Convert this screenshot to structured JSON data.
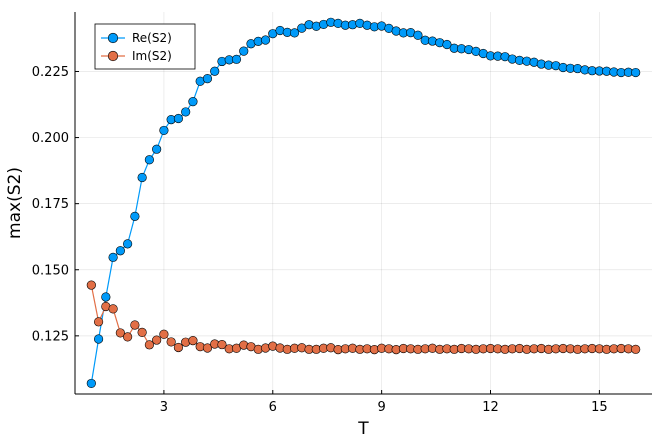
{
  "chart_data": {
    "type": "scatter",
    "title": "",
    "xlabel": "T",
    "ylabel": "max(S2)",
    "xlim": [
      0.55,
      16.45
    ],
    "ylim": [
      0.103,
      0.2475
    ],
    "xticks": [
      3,
      6,
      9,
      12,
      15
    ],
    "xtick_labels": [
      "3",
      "6",
      "9",
      "12",
      "15"
    ],
    "yticks": [
      0.125,
      0.15,
      0.175,
      0.2,
      0.225
    ],
    "ytick_labels": [
      "0.125",
      "0.150",
      "0.175",
      "0.200",
      "0.225"
    ],
    "grid": true,
    "legend_position": "top-left",
    "x": [
      1.0,
      1.2,
      1.4,
      1.6,
      1.8,
      2.0,
      2.2,
      2.4,
      2.6,
      2.8,
      3.0,
      3.2,
      3.4,
      3.6,
      3.8,
      4.0,
      4.2,
      4.4,
      4.6,
      4.8,
      5.0,
      5.2,
      5.4,
      5.6,
      5.8,
      6.0,
      6.2,
      6.4,
      6.6,
      6.8,
      7.0,
      7.2,
      7.4,
      7.6,
      7.8,
      8.0,
      8.2,
      8.4,
      8.6,
      8.8,
      9.0,
      9.2,
      9.4,
      9.6,
      9.8,
      10.0,
      10.2,
      10.4,
      10.6,
      10.8,
      11.0,
      11.2,
      11.4,
      11.6,
      11.8,
      12.0,
      12.2,
      12.4,
      12.6,
      12.8,
      13.0,
      13.2,
      13.4,
      13.6,
      13.8,
      14.0,
      14.2,
      14.4,
      14.6,
      14.8,
      15.0,
      15.2,
      15.4,
      15.6,
      15.8,
      16.0
    ],
    "series": [
      {
        "name": "Re(S2)",
        "color": "#009af9",
        "values": [
          0.107,
          0.1238,
          0.1397,
          0.1547,
          0.1572,
          0.1598,
          0.1702,
          0.1849,
          0.1916,
          0.1956,
          0.2027,
          0.2068,
          0.2072,
          0.2097,
          0.2136,
          0.2213,
          0.2223,
          0.2251,
          0.2288,
          0.2294,
          0.2296,
          0.2327,
          0.2355,
          0.2364,
          0.2369,
          0.2393,
          0.2405,
          0.2398,
          0.2396,
          0.2414,
          0.2427,
          0.2421,
          0.2428,
          0.2436,
          0.2432,
          0.2425,
          0.2427,
          0.2432,
          0.2425,
          0.2419,
          0.2422,
          0.2413,
          0.2403,
          0.2396,
          0.2397,
          0.2387,
          0.2368,
          0.2365,
          0.2359,
          0.2352,
          0.2338,
          0.2336,
          0.2333,
          0.2326,
          0.2318,
          0.2309,
          0.2308,
          0.2306,
          0.2297,
          0.2292,
          0.2289,
          0.2285,
          0.2278,
          0.2274,
          0.2272,
          0.2265,
          0.2262,
          0.2261,
          0.2256,
          0.2253,
          0.2252,
          0.2251,
          0.2248,
          0.2246,
          0.2247,
          0.2246
        ]
      },
      {
        "name": "Im(S2)",
        "color": "#e26f46",
        "values": [
          0.1442,
          0.1303,
          0.1361,
          0.1352,
          0.1261,
          0.1246,
          0.1291,
          0.1263,
          0.1216,
          0.1234,
          0.1256,
          0.1227,
          0.1206,
          0.1226,
          0.1232,
          0.1209,
          0.1204,
          0.1219,
          0.1217,
          0.1201,
          0.1203,
          0.1215,
          0.1209,
          0.1199,
          0.1204,
          0.1211,
          0.1204,
          0.1199,
          0.1203,
          0.1205,
          0.1199,
          0.1199,
          0.1203,
          0.1205,
          0.1198,
          0.1201,
          0.1203,
          0.1199,
          0.1201,
          0.1198,
          0.1203,
          0.1201,
          0.1198,
          0.1202,
          0.1201,
          0.1199,
          0.1201,
          0.1203,
          0.1199,
          0.1201,
          0.1199,
          0.1202,
          0.1201,
          0.1199,
          0.1201,
          0.1202,
          0.1201,
          0.1199,
          0.1201,
          0.1202,
          0.1199,
          0.1201,
          0.1202,
          0.1199,
          0.1201,
          0.1202,
          0.1201,
          0.1199,
          0.1201,
          0.1202,
          0.1201,
          0.1199,
          0.1201,
          0.1202,
          0.1201,
          0.1199
        ]
      }
    ]
  }
}
